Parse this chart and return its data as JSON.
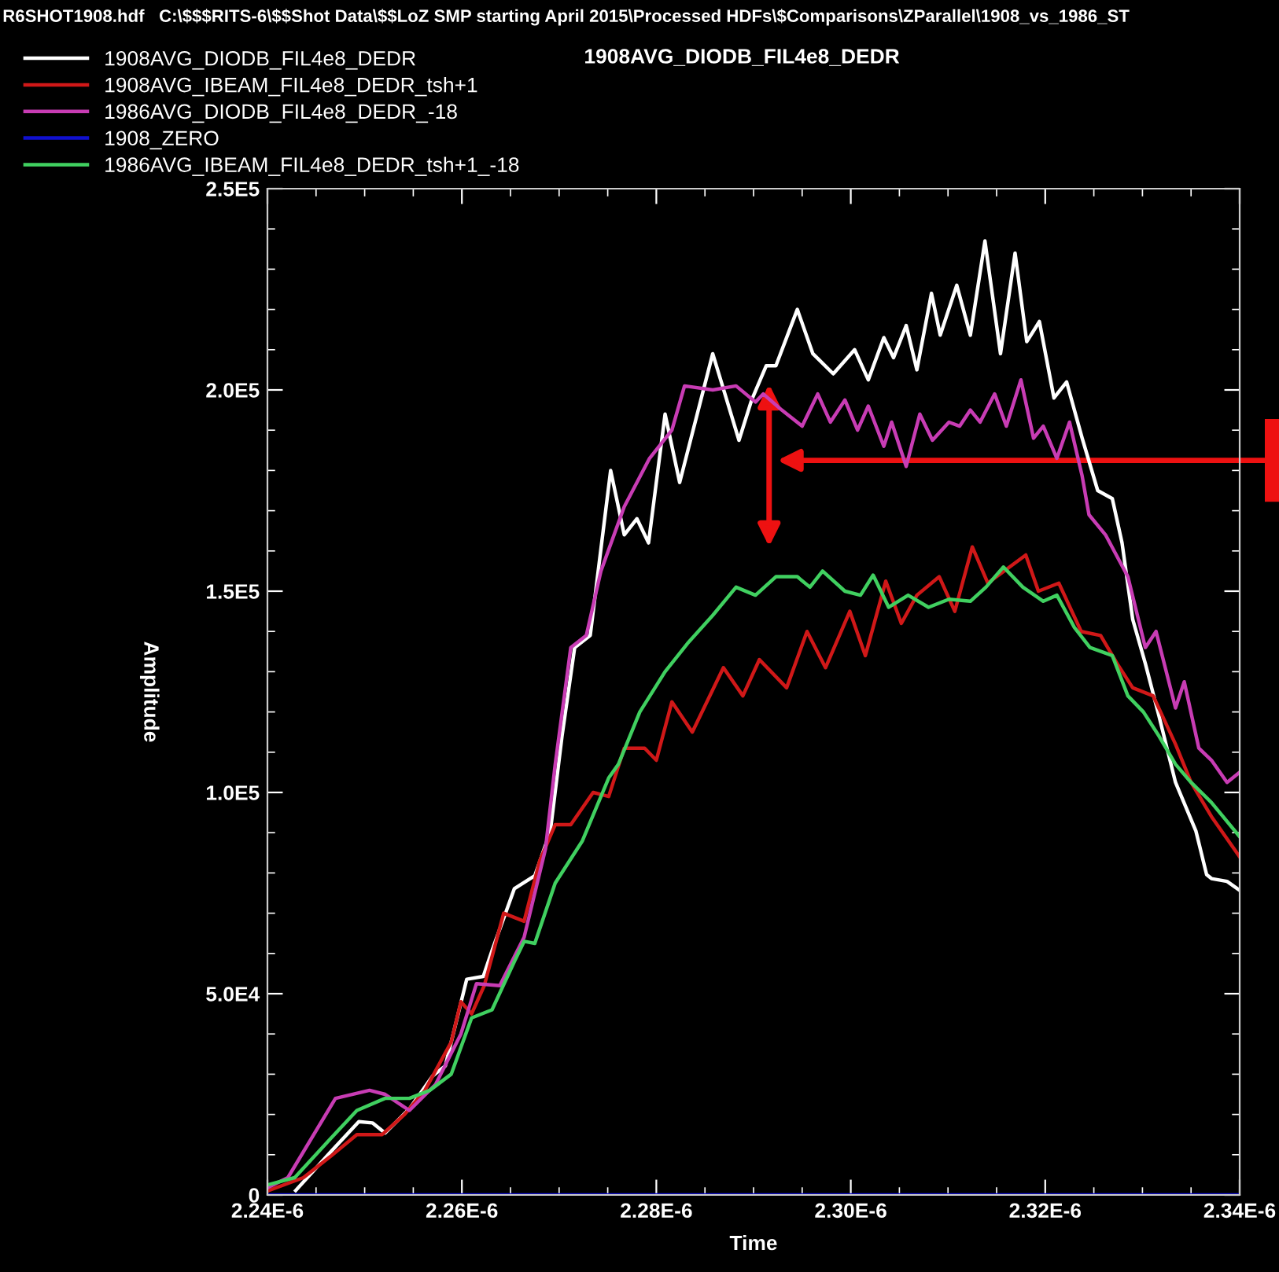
{
  "chart_data": {
    "type": "line",
    "title": "R6SHOT1908.hdf   C:\\$$$RITS-6\\$$Shot Data\\$$LoZ SMP starting April 2015\\Processed HDFs\\$Comparisons\\ZParallel\\1908_vs_1986_ST",
    "subtitle": "1908AVG_DIODB_FIL4e8_DEDR",
    "xlabel": "Time",
    "ylabel": "Amplitude",
    "xlim": [
      2.24e-06,
      2.34e-06
    ],
    "ylim": [
      0,
      250000
    ],
    "xticks": [
      {
        "value": 2.24e-06,
        "label": "2.24E-6"
      },
      {
        "value": 2.245e-06,
        "label": null
      },
      {
        "value": 2.25e-06,
        "label": null
      },
      {
        "value": 2.255e-06,
        "label": null
      },
      {
        "value": 2.26e-06,
        "label": "2.26E-6"
      },
      {
        "value": 2.265e-06,
        "label": null
      },
      {
        "value": 2.27e-06,
        "label": null
      },
      {
        "value": 2.275e-06,
        "label": null
      },
      {
        "value": 2.28e-06,
        "label": "2.28E-6"
      },
      {
        "value": 2.285e-06,
        "label": null
      },
      {
        "value": 2.29e-06,
        "label": null
      },
      {
        "value": 2.295e-06,
        "label": null
      },
      {
        "value": 2.3e-06,
        "label": "2.30E-6"
      },
      {
        "value": 2.305e-06,
        "label": null
      },
      {
        "value": 2.31e-06,
        "label": null
      },
      {
        "value": 2.315e-06,
        "label": null
      },
      {
        "value": 2.32e-06,
        "label": "2.32E-6"
      },
      {
        "value": 2.325e-06,
        "label": null
      },
      {
        "value": 2.33e-06,
        "label": null
      },
      {
        "value": 2.335e-06,
        "label": null
      },
      {
        "value": 2.34e-06,
        "label": "2.34E-6"
      }
    ],
    "yticks": [
      0,
      {
        "value": 10000,
        "label": null
      },
      {
        "value": 20000,
        "label": null
      },
      {
        "value": 30000,
        "label": null
      },
      {
        "value": 40000,
        "label": null
      },
      {
        "value": 50000,
        "label": "5.0E4"
      },
      {
        "value": 60000,
        "label": null
      },
      {
        "value": 70000,
        "label": null
      },
      {
        "value": 80000,
        "label": null
      },
      {
        "value": 90000,
        "label": null
      },
      {
        "value": 100000,
        "label": "1.0E5"
      },
      {
        "value": 110000,
        "label": null
      },
      {
        "value": 120000,
        "label": null
      },
      {
        "value": 130000,
        "label": null
      },
      {
        "value": 140000,
        "label": null
      },
      {
        "value": 150000,
        "label": "1.5E5"
      },
      {
        "value": 160000,
        "label": null
      },
      {
        "value": 170000,
        "label": null
      },
      {
        "value": 180000,
        "label": null
      },
      {
        "value": 190000,
        "label": null
      },
      {
        "value": 200000,
        "label": "2.0E5"
      },
      {
        "value": 210000,
        "label": null
      },
      {
        "value": 220000,
        "label": null
      },
      {
        "value": 230000,
        "label": null
      },
      {
        "value": 240000,
        "label": null
      },
      {
        "value": 250000,
        "label": "2.5E5"
      }
    ],
    "grid": false,
    "legend": "top left",
    "marker": "none",
    "line_style": "solid",
    "series": [
      {
        "name": "1908AVG_DIODB_FIL4e8_DEDR",
        "color": "#ffffff",
        "x": [
          2.2429e-06,
          2.2465e-06,
          2.2494e-06,
          2.2508e-06,
          2.2521e-06,
          2.2546e-06,
          2.257e-06,
          2.2583e-06,
          2.2605e-06,
          2.2622e-06,
          2.2631e-06,
          2.2654e-06,
          2.2675e-06,
          2.2691e-06,
          2.2703e-06,
          2.2716e-06,
          2.2732e-06,
          2.2753e-06,
          2.2767e-06,
          2.278e-06,
          2.2792e-06,
          2.2809e-06,
          2.2824e-06,
          2.2858e-06,
          2.2885e-06,
          2.2898e-06,
          2.2913e-06,
          2.2923e-06,
          2.2945e-06,
          2.2961e-06,
          2.2982e-06,
          2.3004e-06,
          2.3018e-06,
          2.3034e-06,
          2.3044e-06,
          2.3057e-06,
          2.3068e-06,
          2.3083e-06,
          2.3092e-06,
          2.3109e-06,
          2.3123e-06,
          2.3138e-06,
          2.3154e-06,
          2.3169e-06,
          2.3181e-06,
          2.3194e-06,
          2.3209e-06,
          2.3222e-06,
          2.3238e-06,
          2.3254e-06,
          2.3269e-06,
          2.3279e-06,
          2.329e-06,
          2.3303e-06,
          2.3317e-06,
          2.3334e-06,
          2.3355e-06,
          2.3366e-06,
          2.3371e-06,
          2.3387e-06,
          2.34e-06
        ],
        "values": [
          1100,
          10700,
          18200,
          17900,
          15400,
          21400,
          29600,
          32100,
          53600,
          54300,
          60700,
          76100,
          79300,
          90400,
          114000,
          136000,
          139000,
          180000,
          164000,
          168000,
          162000,
          194000,
          177000,
          209000,
          187500,
          197500,
          206000,
          206000,
          220000,
          209000,
          204000,
          210000,
          202500,
          213000,
          208000,
          216000,
          205000,
          224000,
          213600,
          226000,
          213600,
          237000,
          209000,
          234000,
          212000,
          217000,
          198000,
          202000,
          188000,
          175000,
          173000,
          162000,
          143000,
          132000,
          119000,
          102500,
          90400,
          79600,
          78600,
          77900,
          75700
        ]
      },
      {
        "name": "1908AVG_IBEAM_FIL4e8_DEDR_tsh+1",
        "color": "#d01818",
        "x": [
          2.24e-06,
          2.2437e-06,
          2.2465e-06,
          2.2492e-06,
          2.2518e-06,
          2.2541e-06,
          2.2562e-06,
          2.2589e-06,
          2.2599e-06,
          2.261e-06,
          2.2623e-06,
          2.2643e-06,
          2.2664e-06,
          2.268e-06,
          2.2696e-06,
          2.2712e-06,
          2.2735e-06,
          2.2751e-06,
          2.2767e-06,
          2.2788e-06,
          2.28e-06,
          2.2816e-06,
          2.2837e-06,
          2.2869e-06,
          2.2889e-06,
          2.2906e-06,
          2.2934e-06,
          2.2955e-06,
          2.2974e-06,
          2.2999e-06,
          2.3015e-06,
          2.3036e-06,
          2.3052e-06,
          2.3068e-06,
          2.3091e-06,
          2.3107e-06,
          2.3125e-06,
          2.3141e-06,
          2.318e-06,
          2.3193e-06,
          2.3214e-06,
          2.3237e-06,
          2.3257e-06,
          2.3274e-06,
          2.329e-06,
          2.3311e-06,
          2.3334e-06,
          2.335e-06,
          2.3371e-06,
          2.34e-06
        ],
        "values": [
          1000,
          4300,
          9600,
          15000,
          15000,
          20000,
          26000,
          38000,
          48000,
          45000,
          52000,
          70000,
          68000,
          83000,
          92000,
          92000,
          100000,
          99000,
          111000,
          111000,
          108000,
          122500,
          115000,
          131000,
          124000,
          133000,
          126000,
          140000,
          131000,
          145000,
          134000,
          152500,
          142000,
          149000,
          153600,
          145000,
          161000,
          152000,
          159000,
          150000,
          152000,
          140000,
          139000,
          132000,
          126000,
          124000,
          112000,
          102500,
          94000,
          84000
        ]
      },
      {
        "name": "1986AVG_DIODB_FIL4e8_DEDR_-18",
        "color": "#c83cb4",
        "x": [
          2.24e-06,
          2.2421e-06,
          2.247e-06,
          2.2505e-06,
          2.2521e-06,
          2.2546e-06,
          2.2573e-06,
          2.2599e-06,
          2.2615e-06,
          2.2639e-06,
          2.2664e-06,
          2.2686e-06,
          2.2696e-06,
          2.2712e-06,
          2.2728e-06,
          2.2743e-06,
          2.2767e-06,
          2.2793e-06,
          2.2816e-06,
          2.2829e-06,
          2.2858e-06,
          2.2882e-06,
          2.2902e-06,
          2.291e-06,
          2.2929e-06,
          2.295e-06,
          2.2966e-06,
          2.2979e-06,
          2.2994e-06,
          2.3007e-06,
          2.3018e-06,
          2.3034e-06,
          2.3042e-06,
          2.3057e-06,
          2.3071e-06,
          2.3084e-06,
          2.3101e-06,
          2.3112e-06,
          2.3123e-06,
          2.3133e-06,
          2.3148e-06,
          2.316e-06,
          2.3175e-06,
          2.3188e-06,
          2.3198e-06,
          2.3212e-06,
          2.3225e-06,
          2.3238e-06,
          2.3245e-06,
          2.3262e-06,
          2.3285e-06,
          2.3303e-06,
          2.3314e-06,
          2.3334e-06,
          2.3343e-06,
          2.3358e-06,
          2.3371e-06,
          2.3387e-06,
          2.34e-06
        ],
        "values": [
          1800,
          4300,
          24000,
          26000,
          25000,
          21000,
          27500,
          40000,
          52500,
          52000,
          64000,
          86000,
          107000,
          136000,
          139000,
          155000,
          171000,
          183000,
          190000,
          201000,
          200000,
          201000,
          197000,
          199000,
          195000,
          191000,
          199000,
          192000,
          197500,
          190000,
          196000,
          186000,
          192000,
          181000,
          194000,
          187500,
          192000,
          191000,
          195000,
          192000,
          199000,
          191000,
          202500,
          188000,
          191000,
          183000,
          192000,
          178600,
          169000,
          164000,
          153600,
          136000,
          140000,
          121000,
          127500,
          111000,
          108000,
          102500,
          105000
        ]
      },
      {
        "name": "1908_ZERO",
        "color": "#1010d0",
        "x": [
          2.24e-06,
          2.34e-06
        ],
        "values": [
          0,
          0
        ]
      },
      {
        "name": "1986AVG_IBEAM_FIL4e8_DEDR_tsh+1_-18",
        "color": "#40d060",
        "x": [
          2.24e-06,
          2.2428e-06,
          2.2465e-06,
          2.2492e-06,
          2.2521e-06,
          2.2546e-06,
          2.2567e-06,
          2.2589e-06,
          2.261e-06,
          2.2631e-06,
          2.2654e-06,
          2.2664e-06,
          2.2675e-06,
          2.2696e-06,
          2.2724e-06,
          2.2751e-06,
          2.2761e-06,
          2.2783e-06,
          2.2809e-06,
          2.2832e-06,
          2.2858e-06,
          2.2882e-06,
          2.2902e-06,
          2.2923e-06,
          2.2945e-06,
          2.2958e-06,
          2.2971e-06,
          2.2994e-06,
          2.301e-06,
          2.3023e-06,
          2.3039e-06,
          2.3059e-06,
          2.308e-06,
          2.3101e-06,
          2.3123e-06,
          2.3139e-06,
          2.3157e-06,
          2.3177e-06,
          2.3198e-06,
          2.3212e-06,
          2.323e-06,
          2.3246e-06,
          2.3269e-06,
          2.3285e-06,
          2.3301e-06,
          2.3317e-06,
          2.3334e-06,
          2.335e-06,
          2.3371e-06,
          2.34e-06
        ],
        "values": [
          2500,
          4300,
          14000,
          21000,
          24000,
          24000,
          26000,
          30000,
          44000,
          46000,
          58000,
          63000,
          62500,
          77500,
          88000,
          103600,
          107000,
          120000,
          130000,
          137000,
          144000,
          151000,
          149000,
          153600,
          153600,
          151000,
          155000,
          150000,
          149000,
          154000,
          146000,
          149000,
          146000,
          148000,
          147500,
          151000,
          156000,
          151000,
          147500,
          149000,
          141000,
          136000,
          134000,
          124000,
          120000,
          114000,
          107000,
          102500,
          97500,
          89000
        ]
      }
    ]
  }
}
